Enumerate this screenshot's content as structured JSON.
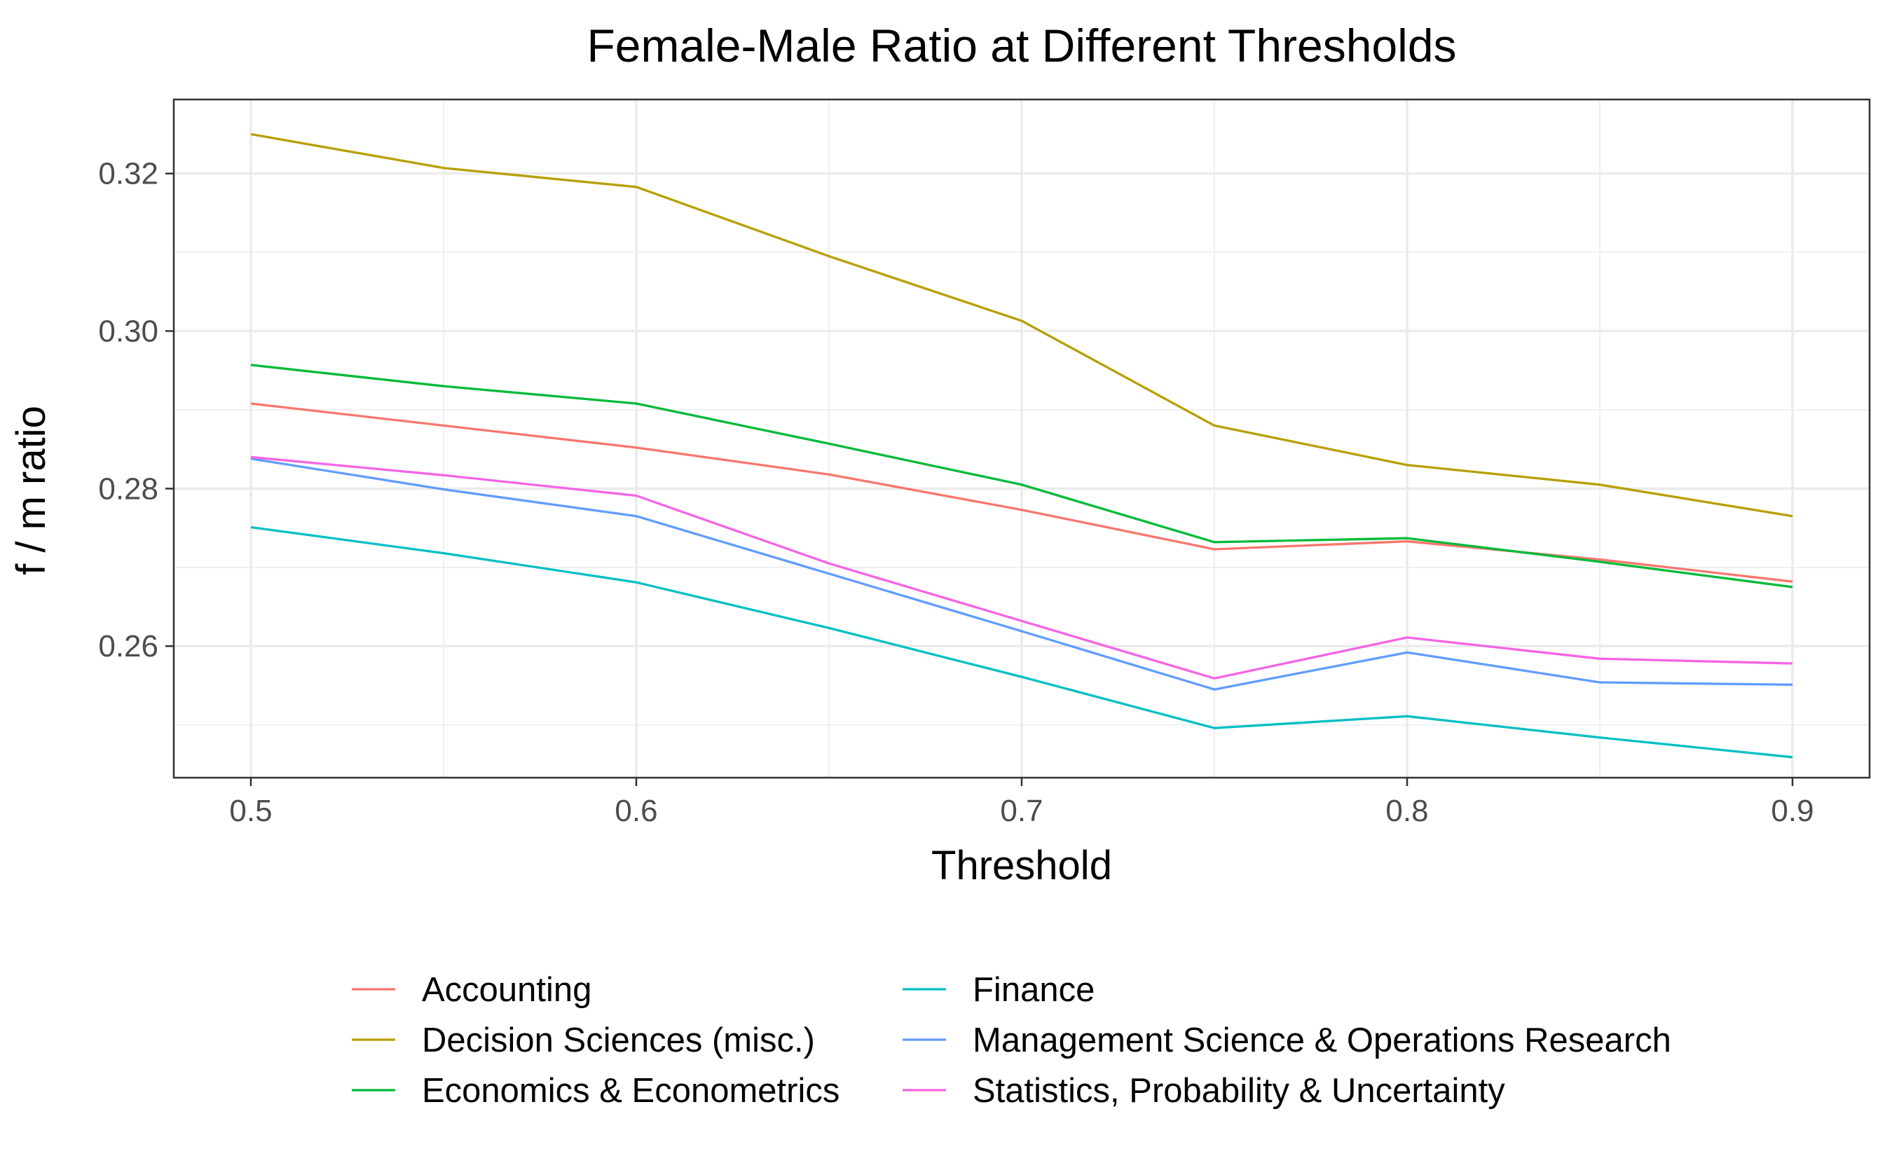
{
  "chart_data": {
    "type": "line",
    "title": "Female-Male Ratio at Different Thresholds",
    "xlabel": "Threshold",
    "ylabel": "f / m ratio",
    "x": [
      0.5,
      0.55,
      0.6,
      0.65,
      0.7,
      0.75,
      0.8,
      0.85,
      0.9
    ],
    "xlim": [
      0.48,
      0.92
    ],
    "ylim": [
      0.2433,
      0.3294
    ],
    "x_ticks": [
      "0.5",
      "0.6",
      "0.7",
      "0.8",
      "0.9"
    ],
    "x_tick_values": [
      0.5,
      0.6,
      0.7,
      0.8,
      0.9
    ],
    "y_ticks": [
      "0.26",
      "0.28",
      "0.30",
      "0.32"
    ],
    "y_tick_values": [
      0.26,
      0.28,
      0.3,
      0.32
    ],
    "grid": true,
    "legend_position": "bottom",
    "series": [
      {
        "name": "Accounting",
        "color": "#F8766D",
        "values": [
          0.2908,
          0.288,
          0.2852,
          0.2818,
          0.2773,
          0.2723,
          0.2733,
          0.271,
          0.2682
        ]
      },
      {
        "name": "Decision Sciences (misc.)",
        "color": "#B79F00",
        "values": [
          0.325,
          0.3207,
          0.3183,
          0.3095,
          0.3013,
          0.288,
          0.283,
          0.2805,
          0.2765
        ]
      },
      {
        "name": "Economics & Econometrics",
        "color": "#00BA38",
        "values": [
          0.2957,
          0.293,
          0.2908,
          0.2857,
          0.2805,
          0.2732,
          0.2737,
          0.2707,
          0.2675
        ]
      },
      {
        "name": "Finance",
        "color": "#00BFC4",
        "values": [
          0.2751,
          0.2718,
          0.2681,
          0.2623,
          0.2561,
          0.2496,
          0.2511,
          0.2484,
          0.2459
        ]
      },
      {
        "name": "Management Science & Operations Research",
        "color": "#619CFF",
        "values": [
          0.2838,
          0.2799,
          0.2765,
          0.2692,
          0.2619,
          0.2545,
          0.2592,
          0.2554,
          0.2551
        ]
      },
      {
        "name": "Statistics, Probability & Uncertainty",
        "color": "#F564E3",
        "values": [
          0.284,
          0.2817,
          0.2791,
          0.2705,
          0.2632,
          0.2559,
          0.2611,
          0.2584,
          0.2578
        ]
      }
    ]
  }
}
